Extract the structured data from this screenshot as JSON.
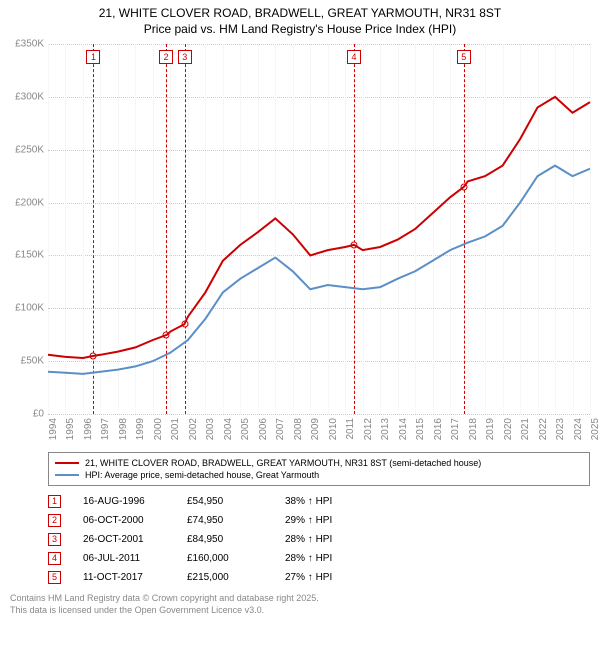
{
  "title_line1": "21, WHITE CLOVER ROAD, BRADWELL, GREAT YARMOUTH, NR31 8ST",
  "title_line2": "Price paid vs. HM Land Registry's House Price Index (HPI)",
  "chart": {
    "type": "line",
    "ylim": [
      0,
      350000
    ],
    "ytick_step": 50000,
    "y_labels": [
      "£0",
      "£50K",
      "£100K",
      "£150K",
      "£200K",
      "£250K",
      "£300K",
      "£350K"
    ],
    "xlim": [
      1994,
      2025
    ],
    "x_labels": [
      "1994",
      "1995",
      "1996",
      "1997",
      "1998",
      "1999",
      "2000",
      "2001",
      "2002",
      "2003",
      "2004",
      "2005",
      "2006",
      "2007",
      "2008",
      "2009",
      "2010",
      "2011",
      "2012",
      "2013",
      "2014",
      "2015",
      "2016",
      "2017",
      "2018",
      "2019",
      "2020",
      "2021",
      "2022",
      "2023",
      "2024",
      "2025"
    ],
    "background_color": "#ffffff",
    "grid_color_y": "#cccccc",
    "grid_color_x": "#eeeeee",
    "series": [
      {
        "name": "21, WHITE CLOVER ROAD, BRADWELL, GREAT YARMOUTH, NR31 8ST (semi-detached house)",
        "color": "#cc0000",
        "data": [
          [
            1994,
            56000
          ],
          [
            1995,
            54000
          ],
          [
            1996,
            53000
          ],
          [
            1996.6,
            54950
          ],
          [
            1997,
            56000
          ],
          [
            1998,
            59000
          ],
          [
            1999,
            63000
          ],
          [
            2000,
            70000
          ],
          [
            2000.8,
            74950
          ],
          [
            2001,
            78000
          ],
          [
            2001.8,
            84950
          ],
          [
            2002,
            92000
          ],
          [
            2003,
            115000
          ],
          [
            2004,
            145000
          ],
          [
            2005,
            160000
          ],
          [
            2006,
            172000
          ],
          [
            2007,
            185000
          ],
          [
            2008,
            170000
          ],
          [
            2009,
            150000
          ],
          [
            2010,
            155000
          ],
          [
            2011,
            158000
          ],
          [
            2011.5,
            160000
          ],
          [
            2012,
            155000
          ],
          [
            2013,
            158000
          ],
          [
            2014,
            165000
          ],
          [
            2015,
            175000
          ],
          [
            2016,
            190000
          ],
          [
            2017,
            205000
          ],
          [
            2017.8,
            215000
          ],
          [
            2018,
            220000
          ],
          [
            2019,
            225000
          ],
          [
            2020,
            235000
          ],
          [
            2021,
            260000
          ],
          [
            2022,
            290000
          ],
          [
            2023,
            300000
          ],
          [
            2024,
            285000
          ],
          [
            2025,
            295000
          ]
        ]
      },
      {
        "name": "HPI: Average price, semi-detached house, Great Yarmouth",
        "color": "#5b8fc7",
        "data": [
          [
            1994,
            40000
          ],
          [
            1995,
            39000
          ],
          [
            1996,
            38000
          ],
          [
            1997,
            40000
          ],
          [
            1998,
            42000
          ],
          [
            1999,
            45000
          ],
          [
            2000,
            50000
          ],
          [
            2001,
            58000
          ],
          [
            2002,
            70000
          ],
          [
            2003,
            90000
          ],
          [
            2004,
            115000
          ],
          [
            2005,
            128000
          ],
          [
            2006,
            138000
          ],
          [
            2007,
            148000
          ],
          [
            2008,
            135000
          ],
          [
            2009,
            118000
          ],
          [
            2010,
            122000
          ],
          [
            2011,
            120000
          ],
          [
            2012,
            118000
          ],
          [
            2013,
            120000
          ],
          [
            2014,
            128000
          ],
          [
            2015,
            135000
          ],
          [
            2016,
            145000
          ],
          [
            2017,
            155000
          ],
          [
            2018,
            162000
          ],
          [
            2019,
            168000
          ],
          [
            2020,
            178000
          ],
          [
            2021,
            200000
          ],
          [
            2022,
            225000
          ],
          [
            2023,
            235000
          ],
          [
            2024,
            225000
          ],
          [
            2025,
            232000
          ]
        ]
      }
    ],
    "markers": [
      {
        "n": "1",
        "year": 1996.6,
        "price": 54950,
        "color": "#cc0000"
      },
      {
        "n": "2",
        "year": 2000.76,
        "price": 74950,
        "color": "#cc0000"
      },
      {
        "n": "3",
        "year": 2001.82,
        "price": 84950,
        "color": "#cc0000"
      },
      {
        "n": "4",
        "year": 2011.5,
        "price": 160000,
        "color": "#cc0000"
      },
      {
        "n": "5",
        "year": 2017.78,
        "price": 215000,
        "color": "#cc0000"
      }
    ]
  },
  "legend": [
    {
      "color": "#cc0000",
      "label": "21, WHITE CLOVER ROAD, BRADWELL, GREAT YARMOUTH, NR31 8ST (semi-detached house)"
    },
    {
      "color": "#5b8fc7",
      "label": "HPI: Average price, semi-detached house, Great Yarmouth"
    }
  ],
  "transactions": [
    {
      "n": "1",
      "date": "16-AUG-1996",
      "price": "£54,950",
      "delta": "38% ↑ HPI",
      "color": "#cc0000"
    },
    {
      "n": "2",
      "date": "06-OCT-2000",
      "price": "£74,950",
      "delta": "29% ↑ HPI",
      "color": "#cc0000"
    },
    {
      "n": "3",
      "date": "26-OCT-2001",
      "price": "£84,950",
      "delta": "28% ↑ HPI",
      "color": "#cc0000"
    },
    {
      "n": "4",
      "date": "06-JUL-2011",
      "price": "£160,000",
      "delta": "28% ↑ HPI",
      "color": "#cc0000"
    },
    {
      "n": "5",
      "date": "11-OCT-2017",
      "price": "£215,000",
      "delta": "27% ↑ HPI",
      "color": "#cc0000"
    }
  ],
  "footer_line1": "Contains HM Land Registry data © Crown copyright and database right 2025.",
  "footer_line2": "This data is licensed under the Open Government Licence v3.0."
}
